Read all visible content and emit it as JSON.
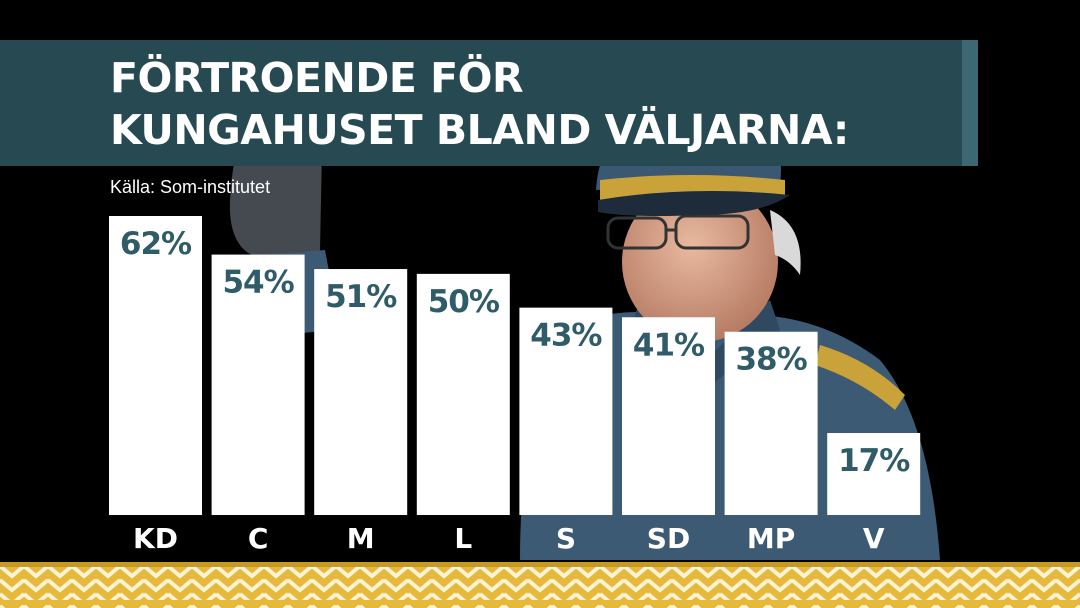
{
  "title": "FÖRTROENDE FÖR\nKUNGAHUSET BLAND VÄLJARNA:",
  "source": "Källa: Som-institutet",
  "colors": {
    "bar": "#ffffff",
    "value_text": "#2f5c68",
    "banner": "#274a52",
    "category_text": "#ffffff",
    "trim_gold": "#e6b93a"
  },
  "chart_data": {
    "type": "bar",
    "title": "FÖRTROENDE FÖR KUNGAHUSET BLAND VÄLJARNA:",
    "categories": [
      "KD",
      "C",
      "M",
      "L",
      "S",
      "SD",
      "MP",
      "V"
    ],
    "values": [
      62,
      54,
      51,
      50,
      43,
      41,
      38,
      17
    ],
    "value_labels": [
      "62%",
      "54%",
      "51%",
      "50%",
      "43%",
      "41%",
      "38%",
      "17%"
    ],
    "xlabel": "",
    "ylabel": "",
    "ylim": [
      0,
      62
    ],
    "grid": false
  }
}
